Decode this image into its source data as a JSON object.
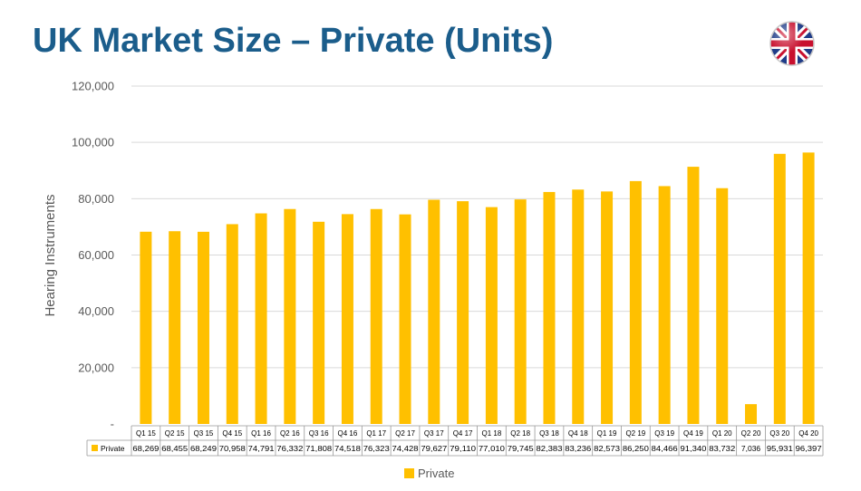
{
  "slide": {
    "title": "UK Market Size – Private (Units)"
  },
  "colors": {
    "title": "#1b5d8b",
    "bar": "#ffc000",
    "grid": "#d9d9d9",
    "axis_text": "#595959"
  },
  "icons": {
    "flag": "uk-flag-icon"
  },
  "chart_data": {
    "type": "bar",
    "title": "",
    "xlabel": "",
    "ylabel": "Hearing Instruments",
    "ylim": [
      0,
      120000
    ],
    "yticks": [
      0,
      20000,
      40000,
      60000,
      80000,
      100000,
      120000
    ],
    "ytick_labels": [
      "-",
      "20,000",
      "40,000",
      "60,000",
      "80,000",
      "100,000",
      "120,000"
    ],
    "grid": true,
    "legend_position": "bottom",
    "data_table": true,
    "categories": [
      "Q1 15",
      "Q2 15",
      "Q3 15",
      "Q4 15",
      "Q1 16",
      "Q2 16",
      "Q3 16",
      "Q4 16",
      "Q1 17",
      "Q2 17",
      "Q3 17",
      "Q4 17",
      "Q1 18",
      "Q2 18",
      "Q3 18",
      "Q4 18",
      "Q1 19",
      "Q2 19",
      "Q3 19",
      "Q4 19",
      "Q1 20",
      "Q2 20",
      "Q3 20",
      "Q4 20"
    ],
    "series": [
      {
        "name": "Private",
        "color": "#ffc000",
        "values": [
          68269,
          68455,
          68249,
          70958,
          74791,
          76332,
          71808,
          74518,
          76323,
          74428,
          79627,
          79110,
          77010,
          79745,
          82383,
          83236,
          82573,
          86250,
          84466,
          91340,
          83732,
          7036,
          95931,
          96397
        ],
        "labels": [
          "68,269",
          "68,455",
          "68,249",
          "70,958",
          "74,791",
          "76,332",
          "71,808",
          "74,518",
          "76,323",
          "74,428",
          "79,627",
          "79,110",
          "77,010",
          "79,745",
          "82,383",
          "83,236",
          "82,573",
          "86,250",
          "84,466",
          "91,340",
          "83,732",
          "7,036",
          "95,931",
          "96,397"
        ]
      }
    ]
  }
}
